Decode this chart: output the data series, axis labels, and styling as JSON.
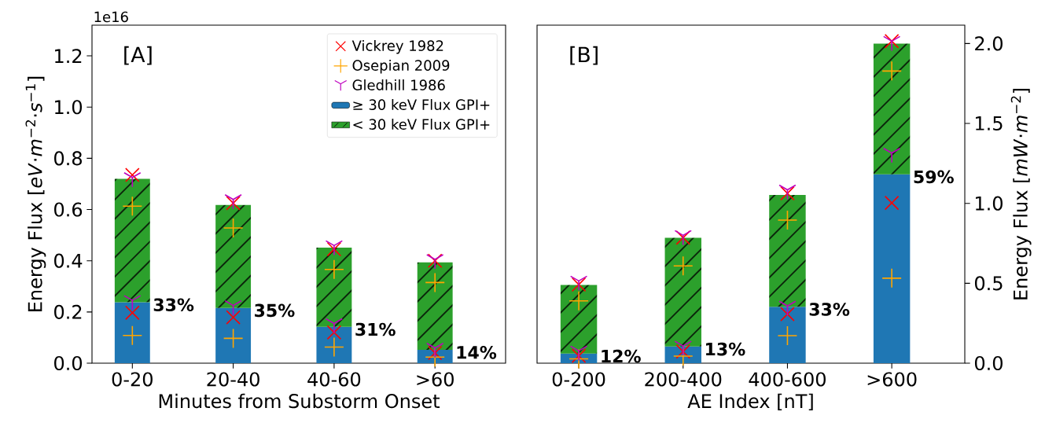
{
  "chart_data": [
    {
      "type": "bar",
      "stacked": true,
      "xlabel": "Minutes from Substorm Onset",
      "ylabel": "Energy Flux [*eV*·*m*$^{−2}$·*s*$^{−1}$]",
      "annotations": [
        "[A]",
        "1e16",
        {
          "text": "33%",
          "x": "0-20",
          "y": 0.238
        },
        {
          "text": "35%",
          "x": "20-40",
          "y": 0.216
        },
        {
          "text": "31%",
          "x": "40-60",
          "y": 0.142
        },
        {
          "text": "14%",
          "x": ">60",
          "y": 0.052
        }
      ],
      "categories": [
        "0-20",
        "20-40",
        "40-60",
        ">60"
      ],
      "ylim": [
        0,
        1.32
      ],
      "yticks": [
        {
          "value": 0,
          "label": "0.0"
        },
        {
          "value": 0.2,
          "label": "0.2"
        },
        {
          "value": 0.4,
          "label": "0.4"
        },
        {
          "value": 0.6,
          "label": "0.6"
        },
        {
          "value": 0.8,
          "label": "0.8"
        },
        {
          "value": 1.0,
          "label": "1.0"
        },
        {
          "value": 1.2,
          "label": "1.2"
        }
      ],
      "legend": "top right",
      "series": [
        {
          "name": "Vickrey 1982",
          "type": "scatter",
          "marker": "cross",
          "color": "#ff0000",
          "x": [
            "0-20",
            "0-20",
            "20-40",
            "20-40",
            "40-60",
            "40-60",
            ">60",
            ">60"
          ],
          "values": [
            0.735,
            0.197,
            0.625,
            0.179,
            0.445,
            0.12,
            0.4,
            0.04
          ]
        },
        {
          "name": "Osepian 2009",
          "type": "scatter",
          "marker": "plus",
          "color": "#ffa500",
          "x": [
            "0-20",
            "0-20",
            "20-40",
            "20-40",
            "40-60",
            "40-60",
            ">60",
            ">60"
          ],
          "values": [
            0.613,
            0.108,
            0.528,
            0.097,
            0.366,
            0.063,
            0.315,
            0.024
          ]
        },
        {
          "name": "Gledhill 1986",
          "type": "scatter",
          "marker": "star",
          "color": "#bf00bf",
          "x": [
            "0-20",
            "0-20",
            "20-40",
            "20-40",
            "40-60",
            "40-60",
            ">60",
            ">60"
          ],
          "values": [
            0.716,
            0.236,
            0.63,
            0.216,
            0.45,
            0.146,
            0.396,
            0.05
          ]
        },
        {
          "name": "≥ 30 keV Flux GPI+",
          "color": "#1f77b4",
          "values": [
            0.238,
            0.216,
            0.142,
            0.052
          ]
        },
        {
          "name": "< 30 keV Flux GPI+",
          "color": "#2ca02c",
          "values": [
            0.482,
            0.402,
            0.309,
            0.342
          ]
        }
      ]
    },
    {
      "type": "bar",
      "stacked": true,
      "xlabel": "AE Index [nT]",
      "ylabel": "Energy Flux [*mW*·*m*$^{−2}$]",
      "annotations": [
        "[B]",
        {
          "text": "12%",
          "x": "0-200",
          "y": 0.06
        },
        {
          "text": "13%",
          "x": "200-400",
          "y": 0.104
        },
        {
          "text": "33%",
          "x": "400-600",
          "y": 0.353
        },
        {
          "text": "59%",
          "x": ">600",
          "y": 1.182
        }
      ],
      "categories": [
        "0-200",
        "200-400",
        "400-600",
        ">600"
      ],
      "ylim": [
        0,
        2.115
      ],
      "yticks": [
        {
          "value": 0,
          "label": "0.0"
        },
        {
          "value": 0.5,
          "label": "0.5"
        },
        {
          "value": 1.0,
          "label": "1.0"
        },
        {
          "value": 1.5,
          "label": "1.5"
        },
        {
          "value": 2.0,
          "label": "2.0"
        }
      ],
      "series": [
        {
          "type": "scatter",
          "marker": "cross",
          "color": "#ff0000",
          "x": [
            "0-200",
            "0-200",
            "200-400",
            "200-400",
            "400-600",
            "400-600",
            ">600",
            ">600"
          ],
          "values": [
            0.492,
            0.046,
            0.785,
            0.073,
            1.063,
            0.307,
            2.015,
            1.003
          ]
        },
        {
          "type": "scatter",
          "marker": "plus",
          "color": "#ffa500",
          "x": [
            "0-200",
            "0-200",
            "200-400",
            "200-400",
            "400-600",
            "400-600",
            ">600",
            ">600"
          ],
          "values": [
            0.39,
            0.027,
            0.609,
            0.044,
            0.895,
            0.172,
            1.828,
            0.532
          ]
        },
        {
          "type": "scatter",
          "marker": "star",
          "color": "#bf00bf",
          "x": [
            "0-200",
            "0-200",
            "200-400",
            "200-400",
            "400-600",
            "400-600",
            ">600",
            ">600"
          ],
          "values": [
            0.5,
            0.062,
            0.785,
            0.093,
            1.07,
            0.343,
            2.0,
            1.3
          ]
        },
        {
          "color": "#1f77b4",
          "values": [
            0.06,
            0.104,
            0.353,
            1.182
          ]
        },
        {
          "color": "#2ca02c",
          "values": [
            0.43,
            0.681,
            0.7,
            0.818
          ]
        }
      ]
    }
  ]
}
